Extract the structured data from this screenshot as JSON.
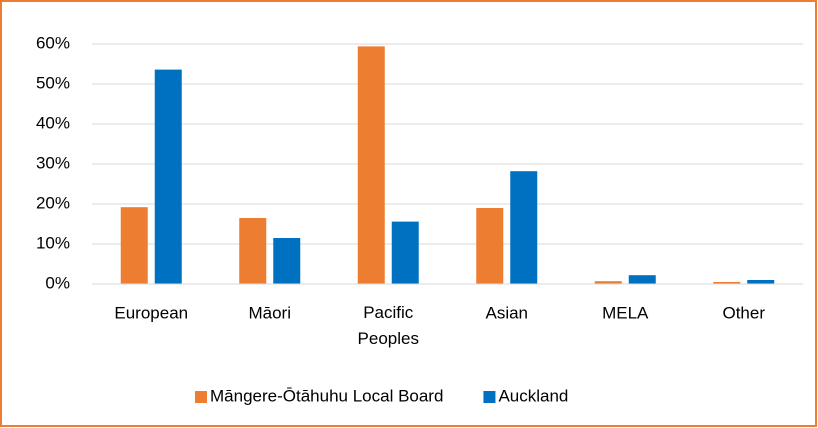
{
  "chart_data": {
    "type": "bar",
    "categories": [
      "European",
      "Māori",
      "Pacific Peoples",
      "Asian",
      "MELA",
      "Other"
    ],
    "series": [
      {
        "name": "Māngere-Ōtāhuhu Local Board",
        "color": "#ed7d31",
        "values": [
          19.2,
          16.5,
          59.4,
          19.0,
          0.7,
          0.5
        ]
      },
      {
        "name": "Auckland",
        "color": "#0070c0",
        "values": [
          53.6,
          11.5,
          15.6,
          28.2,
          2.2,
          1.0
        ]
      }
    ],
    "ylim": [
      0,
      60
    ],
    "yticks": [
      {
        "value": 0,
        "label": "0%"
      },
      {
        "value": 10,
        "label": "10%"
      },
      {
        "value": 20,
        "label": "20%"
      },
      {
        "value": 30,
        "label": "30%"
      },
      {
        "value": 40,
        "label": "40%"
      },
      {
        "value": 50,
        "label": "50%"
      },
      {
        "value": 60,
        "label": "60%"
      }
    ],
    "grid": true,
    "legend": "bottom"
  }
}
